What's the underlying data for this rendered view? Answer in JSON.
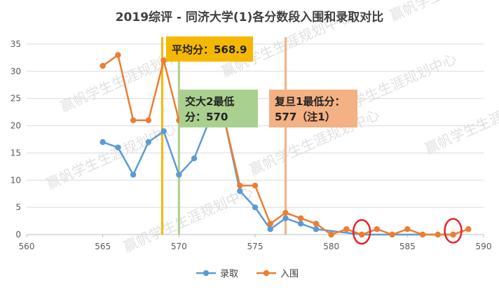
{
  "chart_data": {
    "type": "line",
    "title": "2019综评 - 同济大学(1)各分数段入围和录取对比",
    "xlim": [
      560,
      590
    ],
    "ylim": [
      0,
      35
    ],
    "x_ticks": [
      560,
      565,
      570,
      575,
      580,
      585,
      590
    ],
    "y_ticks": [
      0,
      5,
      10,
      15,
      20,
      25,
      30,
      35
    ],
    "grid": "horizontal",
    "legend_position": "bottom",
    "series": [
      {
        "name": "录取",
        "color": "#5b9bd5",
        "points": [
          [
            565,
            17
          ],
          [
            566,
            16
          ],
          [
            567,
            11
          ],
          [
            568,
            17
          ],
          [
            569,
            19
          ],
          [
            570,
            11
          ],
          [
            571,
            14
          ],
          [
            572,
            21
          ],
          [
            573,
            21
          ],
          [
            574,
            8
          ],
          [
            575,
            5
          ],
          [
            576,
            1
          ],
          [
            577,
            3
          ],
          [
            578,
            2
          ],
          [
            579,
            1
          ],
          [
            582,
            0
          ],
          [
            588,
            0
          ]
        ]
      },
      {
        "name": "入围",
        "color": "#ed7d31",
        "points": [
          [
            565,
            31
          ],
          [
            566,
            33
          ],
          [
            567,
            21
          ],
          [
            568,
            21
          ],
          [
            569,
            32
          ],
          [
            570,
            21
          ],
          [
            571,
            21
          ],
          [
            572,
            21
          ],
          [
            573,
            21
          ],
          [
            574,
            9
          ],
          [
            575,
            9
          ],
          [
            576,
            2
          ],
          [
            577,
            4
          ],
          [
            578,
            3
          ],
          [
            579,
            2
          ],
          [
            580,
            0
          ],
          [
            581,
            1
          ],
          [
            582,
            0
          ],
          [
            583,
            1
          ],
          [
            584,
            0
          ],
          [
            585,
            1
          ],
          [
            586,
            0
          ],
          [
            587,
            0
          ],
          [
            588,
            0
          ],
          [
            589,
            1
          ]
        ]
      }
    ],
    "reference_lines": [
      {
        "x": 568.9,
        "color": "#f5b800",
        "label": "平均分：568.9",
        "label_bg": "#f5b800"
      },
      {
        "x": 570,
        "color": "#a9d08e",
        "label": "交大2最低分：570",
        "label_lines": [
          "交大2最低",
          "分：570"
        ],
        "label_bg": "#a9d08e"
      },
      {
        "x": 577,
        "color": "#f4b183",
        "label": "复旦1最低分：577（注1）",
        "label_lines": [
          "复旦1最低分：",
          "577（注1）"
        ],
        "label_bg": "#f4b183"
      }
    ],
    "highlights": [
      {
        "x": 582,
        "y": 0.5,
        "color": "#e8232a"
      },
      {
        "x": 588,
        "y": 0.7,
        "color": "#e8232a"
      }
    ]
  },
  "watermark": {
    "text": "赢帆学生生涯规划中心",
    "color": "#c8c8c8"
  }
}
